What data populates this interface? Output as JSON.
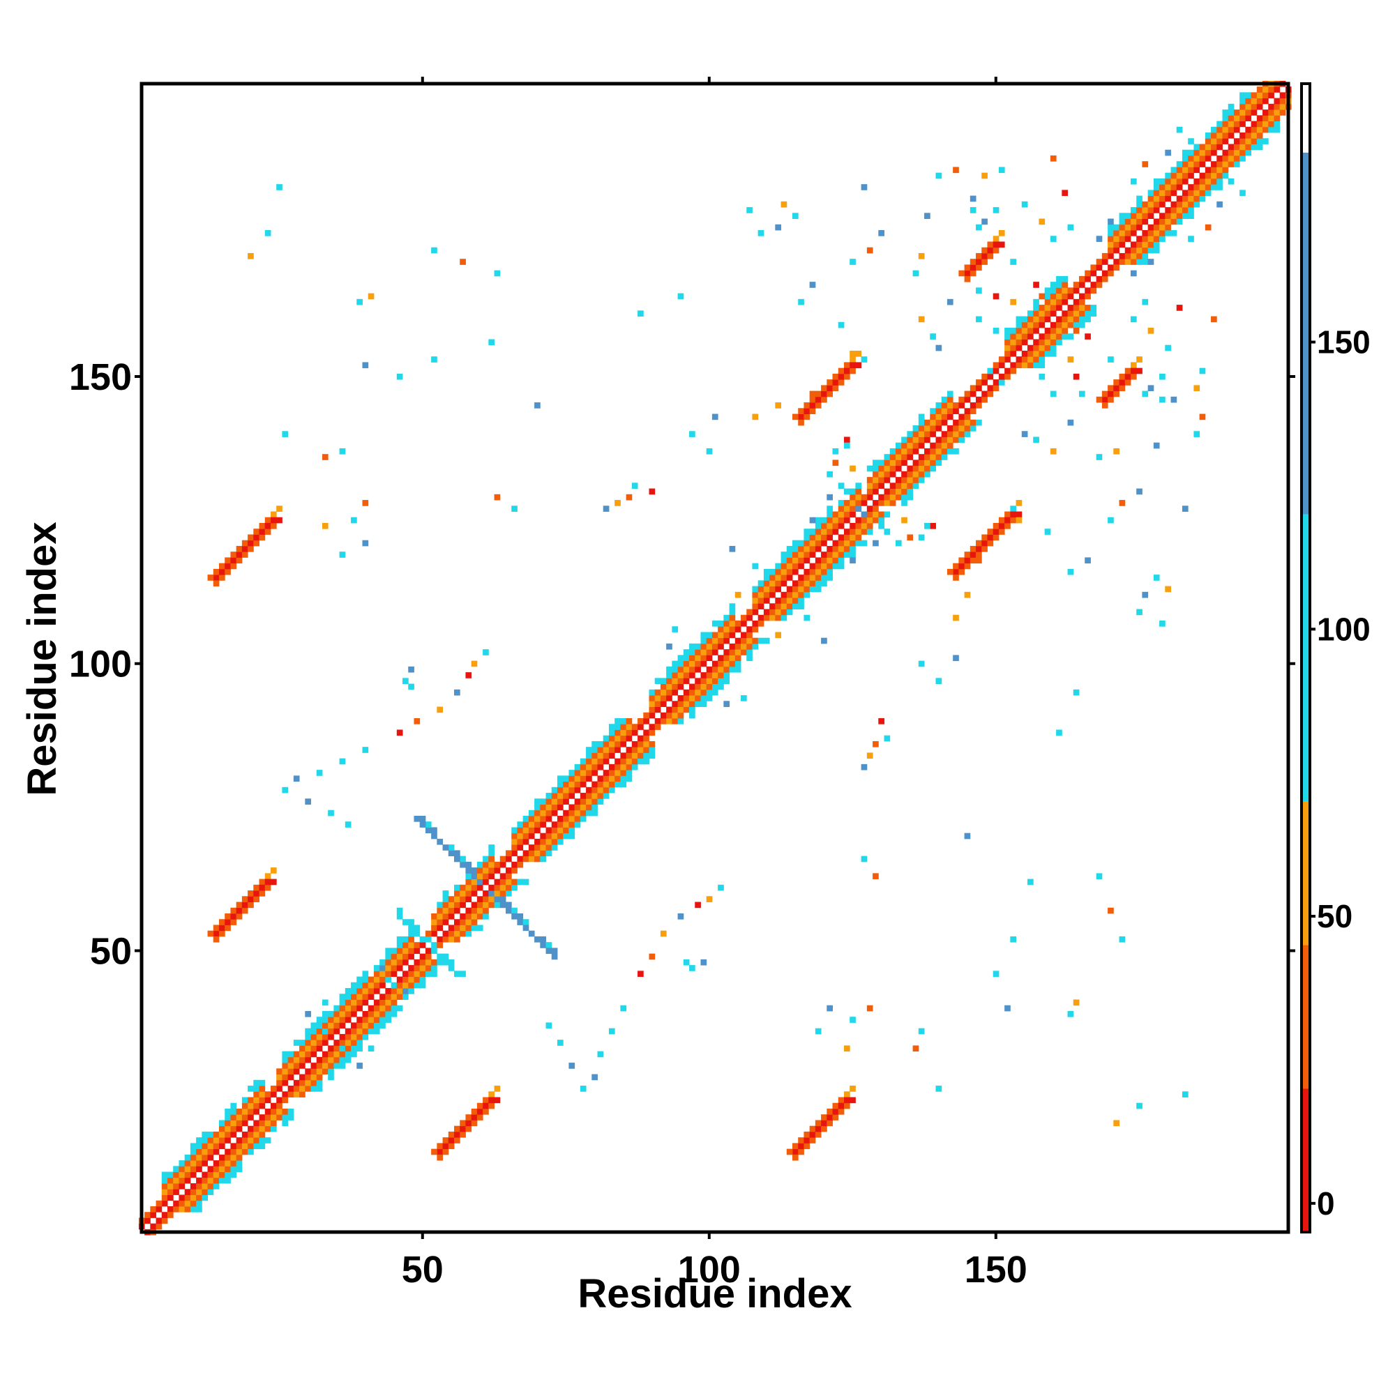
{
  "chart_data": {
    "type": "heatmap",
    "xlabel": "Residue index",
    "ylabel": "Residue index",
    "xlim": [
      1,
      201
    ],
    "ylim": [
      1,
      201
    ],
    "x_ticks": [
      50,
      100,
      150
    ],
    "y_ticks": [
      50,
      100,
      150
    ],
    "colorbar": {
      "ticks": [
        0,
        50,
        100,
        150
      ],
      "range": [
        -5,
        195
      ],
      "segments": [
        {
          "from": -5,
          "to": 20,
          "color": "#e8140e"
        },
        {
          "from": 20,
          "to": 45,
          "color": "#f25d0a"
        },
        {
          "from": 45,
          "to": 70,
          "color": "#f79f0d"
        },
        {
          "from": 70,
          "to": 120,
          "color": "#21d8ea"
        },
        {
          "from": 120,
          "to": 183,
          "color": "#4e92c9"
        },
        {
          "from": 183,
          "to": 195,
          "color": "#ffffff"
        }
      ]
    },
    "colors": {
      "red": "#e8140e",
      "orange_red": "#f25d0a",
      "orange": "#f79f0d",
      "cyan": "#21d8ea",
      "blue": "#4e92c9"
    },
    "features": [
      {
        "kind": "diagonal",
        "from": 1,
        "to": 201
      },
      {
        "kind": "helix",
        "from": 5,
        "to": 22
      },
      {
        "kind": "helix",
        "from": 25,
        "to": 48
      },
      {
        "kind": "helix",
        "from": 52,
        "to": 62
      },
      {
        "kind": "helix",
        "from": 66,
        "to": 86
      },
      {
        "kind": "helix",
        "from": 90,
        "to": 104
      },
      {
        "kind": "helix",
        "from": 108,
        "to": 126
      },
      {
        "kind": "helix",
        "from": 128,
        "to": 142
      },
      {
        "kind": "helix",
        "from": 152,
        "to": 162
      },
      {
        "kind": "helix",
        "from": 170,
        "to": 200
      },
      {
        "kind": "antiparallel_band",
        "center": [
          61,
          61
        ],
        "half_length": 12,
        "color": "blue"
      },
      {
        "kind": "antiparallel_band",
        "center": [
          51,
          51
        ],
        "half_length": 5,
        "color": "cyan"
      },
      {
        "kind": "parallel_contact",
        "x": [
          14,
          24
        ],
        "y": [
          115,
          125
        ]
      },
      {
        "kind": "parallel_contact",
        "x": [
          14,
          24
        ],
        "y": [
          53,
          62
        ]
      },
      {
        "kind": "parallel_contact",
        "x": [
          53,
          62
        ],
        "y": [
          15,
          24
        ]
      },
      {
        "kind": "parallel_contact",
        "x": [
          115,
          125
        ],
        "y": [
          15,
          24
        ]
      },
      {
        "kind": "parallel_contact",
        "x": [
          116,
          125
        ],
        "y": [
          143,
          153
        ]
      },
      {
        "kind": "parallel_contact",
        "x": [
          143,
          153
        ],
        "y": [
          116,
          126
        ]
      },
      {
        "kind": "parallel_contact",
        "x": [
          145,
          150
        ],
        "y": [
          168,
          173
        ]
      },
      {
        "kind": "parallel_contact",
        "x": [
          169,
          174
        ],
        "y": [
          146,
          151
        ]
      }
    ]
  }
}
